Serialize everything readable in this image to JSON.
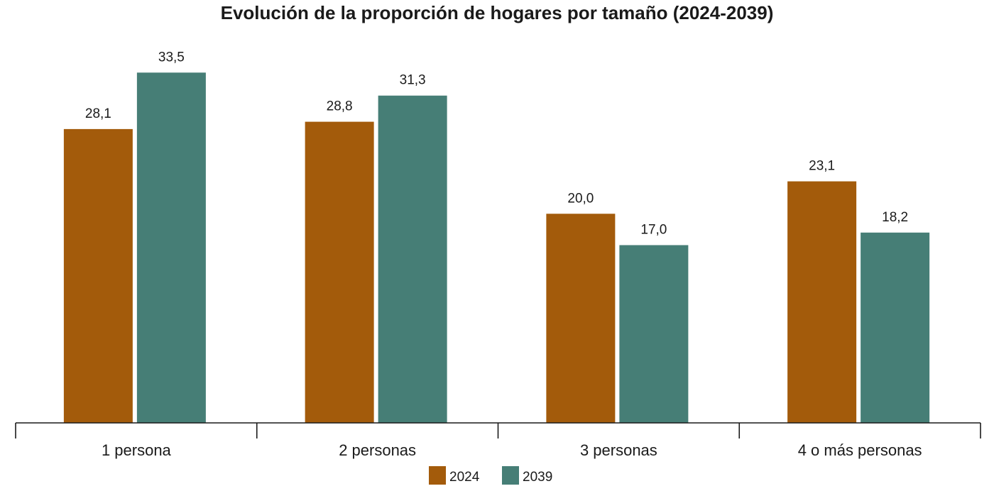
{
  "chart_data": {
    "type": "bar",
    "title": "Evolución de la proporción de hogares por tamaño (2024-2039)",
    "categories": [
      "1 persona",
      "2 personas",
      "3 personas",
      "4 o más personas"
    ],
    "series": [
      {
        "name": "2024",
        "color": "#a35b0b",
        "values": [
          28.1,
          28.8,
          20.0,
          23.1
        ],
        "labels": [
          "28,1",
          "28,8",
          "20,0",
          "23,1"
        ]
      },
      {
        "name": "2039",
        "color": "#467e76",
        "values": [
          33.5,
          31.3,
          17.0,
          18.2
        ],
        "labels": [
          "33,5",
          "31,3",
          "17,0",
          "18,2"
        ]
      }
    ],
    "ylim": [
      0,
      34.2
    ],
    "grid": false,
    "legend_position": "bottom-center"
  }
}
